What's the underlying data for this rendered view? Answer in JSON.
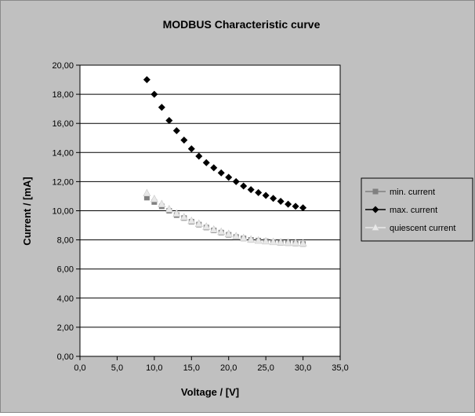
{
  "chart_data": {
    "type": "scatter",
    "title": "MODBUS Characteristic curve",
    "xlabel": "Voltage / [V]",
    "ylabel": "Current / [mA]",
    "xlim": [
      0,
      35
    ],
    "ylim": [
      0,
      20
    ],
    "x_ticks": [
      "0,0",
      "5,0",
      "10,0",
      "15,0",
      "20,0",
      "25,0",
      "30,0",
      "35,0"
    ],
    "y_ticks": [
      "0,00",
      "2,00",
      "4,00",
      "6,00",
      "8,00",
      "10,00",
      "12,00",
      "14,00",
      "16,00",
      "18,00",
      "20,00"
    ],
    "grid": "horizontal",
    "legend_position": "right",
    "series": [
      {
        "name": "min. current",
        "marker": "square",
        "color": "#808080",
        "x": [
          9,
          10,
          11,
          12,
          13,
          14,
          15,
          16,
          17,
          18,
          19,
          20,
          21,
          22,
          23,
          24,
          25,
          26,
          27,
          28,
          29,
          30
        ],
        "y": [
          10.9,
          10.6,
          10.3,
          10.0,
          9.7,
          9.5,
          9.25,
          9.05,
          8.85,
          8.65,
          8.5,
          8.35,
          8.2,
          8.1,
          8.0,
          7.95,
          7.9,
          7.85,
          7.8,
          7.78,
          7.75,
          7.72
        ]
      },
      {
        "name": "max. current",
        "marker": "diamond",
        "color": "#000000",
        "x": [
          9,
          10,
          11,
          12,
          13,
          14,
          15,
          16,
          17,
          18,
          19,
          20,
          21,
          22,
          23,
          24,
          25,
          26,
          27,
          28,
          29,
          30
        ],
        "y": [
          19.0,
          18.0,
          17.1,
          16.2,
          15.5,
          14.85,
          14.25,
          13.75,
          13.3,
          12.95,
          12.6,
          12.3,
          12.0,
          11.7,
          11.45,
          11.25,
          11.05,
          10.85,
          10.65,
          10.45,
          10.3,
          10.2
        ]
      },
      {
        "name": "quiescent current",
        "marker": "triangle",
        "color": "#e8e8e8",
        "x": [
          9,
          10,
          11,
          12,
          13,
          14,
          15,
          16,
          17,
          18,
          19,
          20,
          21,
          22,
          23,
          24,
          25,
          26,
          27,
          28,
          29,
          30
        ],
        "y": [
          11.2,
          10.8,
          10.45,
          10.1,
          9.8,
          9.55,
          9.3,
          9.1,
          8.9,
          8.7,
          8.55,
          8.4,
          8.25,
          8.12,
          8.02,
          7.95,
          7.9,
          7.85,
          7.82,
          7.8,
          7.78,
          7.75
        ]
      }
    ]
  }
}
